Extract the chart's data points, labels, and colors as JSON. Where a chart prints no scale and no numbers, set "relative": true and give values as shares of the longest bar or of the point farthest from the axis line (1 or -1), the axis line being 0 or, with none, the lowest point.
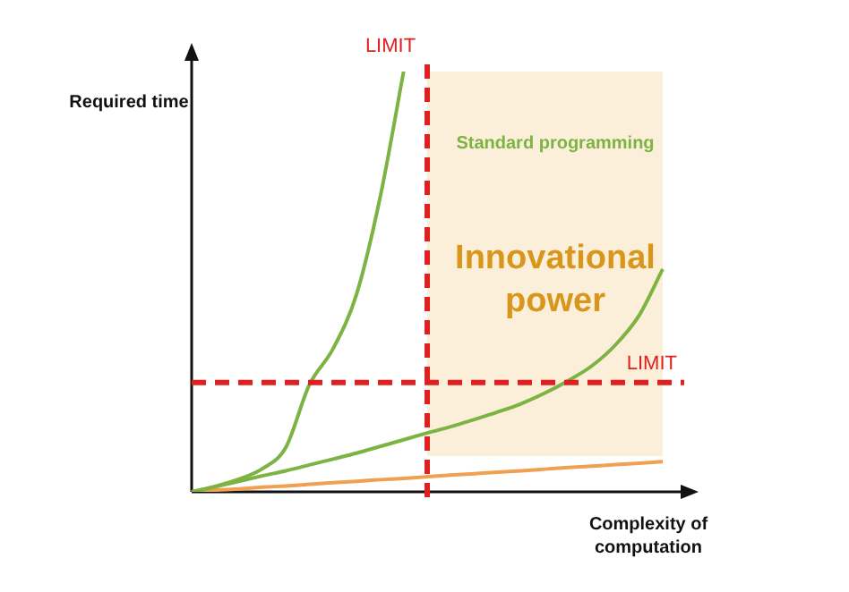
{
  "chart_data": {
    "type": "line",
    "relative": true,
    "xlabel": "Complexity of computation",
    "ylabel": "Required time",
    "categories": [
      null,
      null,
      null,
      null,
      null,
      null,
      null,
      null,
      null,
      null,
      null,
      null,
      null,
      null,
      null,
      null,
      null,
      null,
      null,
      null,
      null
    ],
    "series": [
      {
        "color": "#7cb342",
        "values": [
          0,
          0.013,
          0.03,
          0.055,
          0.106,
          0.255,
          0.34,
          0.47,
          0.7,
          1,
          null,
          null,
          null,
          null,
          null,
          null,
          null,
          null,
          null,
          null,
          null
        ]
      },
      {
        "color": "#7cb342",
        "values": [
          0,
          0.012,
          0.025,
          0.038,
          0.05,
          0.064,
          0.078,
          0.092,
          0.108,
          0.124,
          0.14,
          0.155,
          0.172,
          0.19,
          0.21,
          0.235,
          0.265,
          0.3,
          0.35,
          0.42,
          0.53
        ]
      },
      {
        "color": "#f0a050",
        "values": [
          0,
          0.004,
          0.007,
          0.011,
          0.014,
          0.018,
          0.022,
          0.025,
          0.029,
          0.032,
          0.036,
          0.04,
          0.043,
          0.047,
          0.05,
          0.054,
          0.058,
          0.061,
          0.065,
          0.068,
          0.072
        ]
      }
    ],
    "ref_lines": [
      {
        "axis": "y",
        "value": 0.26,
        "label": "LIMIT",
        "color": "#e02020",
        "line_style": "dashed"
      }
    ],
    "annotations": [
      "Standard programming",
      "Innovational power",
      "LIMIT"
    ],
    "marker": "none",
    "line_style": "solid",
    "legend": false
  }
}
